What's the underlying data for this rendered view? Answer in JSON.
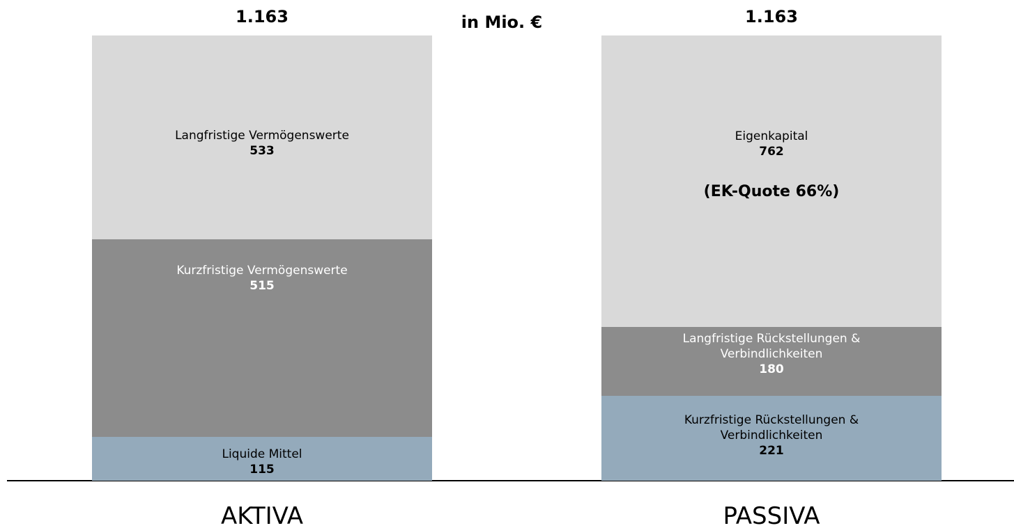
{
  "chart_data": {
    "type": "stacked-bar",
    "subtitle": "in Mio. €",
    "bars": [
      {
        "category": "AKTIVA",
        "total": 1163,
        "total_label": "1.163",
        "segments": [
          {
            "name": "Liquide Mittel",
            "value": 115,
            "color": "#94aabb",
            "label_color": "#000000"
          },
          {
            "name": "Kurzfristige Vermögenswerte",
            "value": 515,
            "color": "#8c8c8c",
            "label_color": "#ffffff"
          },
          {
            "name": "Langfristige Vermögenswerte",
            "value": 533,
            "color": "#d9d9d9",
            "label_color": "#000000"
          }
        ]
      },
      {
        "category": "PASSIVA",
        "total": 1163,
        "total_label": "1.163",
        "segments": [
          {
            "name": "Kurzfristige Rückstellungen & Verbindlichkeiten",
            "value": 221,
            "color": "#94aabb",
            "label_color": "#000000"
          },
          {
            "name": "Langfristige Rückstellungen & Verbindlichkeiten",
            "value": 180,
            "color": "#8c8c8c",
            "label_color": "#ffffff"
          },
          {
            "name": "Eigenkapital",
            "value": 762,
            "color": "#d9d9d9",
            "label_color": "#000000",
            "annotation": "(EK-Quote 66%)"
          }
        ]
      }
    ]
  }
}
